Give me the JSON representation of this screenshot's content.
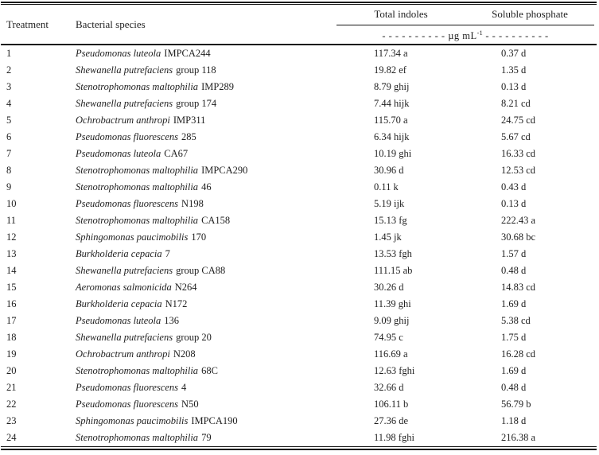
{
  "table": {
    "columns": {
      "treatment": "Treatment",
      "species": "Bacterial species",
      "total_indoles": "Total indoles",
      "soluble_phosphate": "Soluble phosphate"
    },
    "units_row": {
      "dashes_left": "- - - - - - - - - -",
      "unit": " µg mL",
      "unit_superscript": "-1",
      "dashes_right": " - - - - - - - - - -"
    },
    "rows": [
      {
        "treatment": "1",
        "species_italic": "Pseudomonas luteola",
        "species_regular": "IMPCA244",
        "total_indoles": "117.34 a",
        "soluble_phosphate": "0.37 d"
      },
      {
        "treatment": "2",
        "species_italic": "Shewanella putrefaciens",
        "species_regular": "group 118",
        "total_indoles": "19.82 ef",
        "soluble_phosphate": "1.35 d"
      },
      {
        "treatment": "3",
        "species_italic": "Stenotrophomonas maltophilia",
        "species_regular": "IMP289",
        "total_indoles": "8.79 ghij",
        "soluble_phosphate": "0.13 d"
      },
      {
        "treatment": "4",
        "species_italic": "Shewanella putrefaciens",
        "species_regular": "group 174",
        "total_indoles": "7.44 hijk",
        "soluble_phosphate": "8.21 cd"
      },
      {
        "treatment": "5",
        "species_italic": "Ochrobactrum anthropi",
        "species_regular": "IMP311",
        "total_indoles": "115.70 a",
        "soluble_phosphate": "24.75 cd"
      },
      {
        "treatment": "6",
        "species_italic": "Pseudomonas fluorescens",
        "species_regular": "285",
        "total_indoles": "6.34 hijk",
        "soluble_phosphate": "5.67 cd"
      },
      {
        "treatment": "7",
        "species_italic": "Pseudomonas luteola",
        "species_regular": "CA67",
        "total_indoles": "10.19 ghi",
        "soluble_phosphate": "16.33 cd"
      },
      {
        "treatment": "8",
        "species_italic": "Stenotrophomonas maltophilia",
        "species_regular": "IMPCA290",
        "total_indoles": "30.96 d",
        "soluble_phosphate": "12.53 cd"
      },
      {
        "treatment": "9",
        "species_italic": "Stenotrophomonas maltophilia",
        "species_regular": "46",
        "total_indoles": "0.11 k",
        "soluble_phosphate": "0.43 d"
      },
      {
        "treatment": "10",
        "species_italic": "Pseudomonas fluorescens",
        "species_regular": "N198",
        "total_indoles": "5.19 ijk",
        "soluble_phosphate": "0.13 d"
      },
      {
        "treatment": "11",
        "species_italic": "Stenotrophomonas maltophilia",
        "species_regular": "CA158",
        "total_indoles": "15.13 fg",
        "soluble_phosphate": "222.43 a"
      },
      {
        "treatment": "12",
        "species_italic": "Sphingomonas paucimobilis",
        "species_regular": "170",
        "total_indoles": "1.45 jk",
        "soluble_phosphate": "30.68 bc"
      },
      {
        "treatment": "13",
        "species_italic": "Burkholderia cepacia",
        "species_regular": "7",
        "total_indoles": "13.53 fgh",
        "soluble_phosphate": "1.57 d"
      },
      {
        "treatment": "14",
        "species_italic": "Shewanella putrefaciens",
        "species_regular": "group CA88",
        "total_indoles": "111.15 ab",
        "soluble_phosphate": "0.48 d"
      },
      {
        "treatment": "15",
        "species_italic": "Aeromonas salmonicida",
        "species_regular": "N264",
        "total_indoles": "30.26 d",
        "soluble_phosphate": "14.83 cd"
      },
      {
        "treatment": "16",
        "species_italic": "Burkholderia cepacia",
        "species_regular": "N172",
        "total_indoles": "11.39 ghi",
        "soluble_phosphate": "1.69 d"
      },
      {
        "treatment": "17",
        "species_italic": "Pseudomonas luteola",
        "species_regular": "136",
        "total_indoles": "9.09 ghij",
        "soluble_phosphate": "5.38 cd"
      },
      {
        "treatment": "18",
        "species_italic": "Shewanella putrefaciens",
        "species_regular": "group 20",
        "total_indoles": "74.95 c",
        "soluble_phosphate": "1.75 d"
      },
      {
        "treatment": "19",
        "species_italic": "Ochrobactrum anthropi",
        "species_regular": "N208",
        "total_indoles": "116.69 a",
        "soluble_phosphate": "16.28 cd"
      },
      {
        "treatment": "20",
        "species_italic": "Stenotrophomonas maltophilia",
        "species_regular": "68C",
        "total_indoles": "12.63 fghi",
        "soluble_phosphate": "1.69 d"
      },
      {
        "treatment": "21",
        "species_italic": "Pseudomonas fluorescens",
        "species_regular": "4",
        "total_indoles": "32.66 d",
        "soluble_phosphate": "0.48 d"
      },
      {
        "treatment": "22",
        "species_italic": "Pseudomonas fluorescens",
        "species_regular": "N50",
        "total_indoles": "106.11 b",
        "soluble_phosphate": "56.79 b"
      },
      {
        "treatment": "23",
        "species_italic": "Sphingomonas paucimobilis",
        "species_regular": "IMPCA190",
        "total_indoles": "27.36 de",
        "soluble_phosphate": "1.18 d"
      },
      {
        "treatment": "24",
        "species_italic": "Stenotrophomonas maltophilia",
        "species_regular": "79",
        "total_indoles": "11.98 fghi",
        "soluble_phosphate": "216.38 a"
      }
    ]
  }
}
